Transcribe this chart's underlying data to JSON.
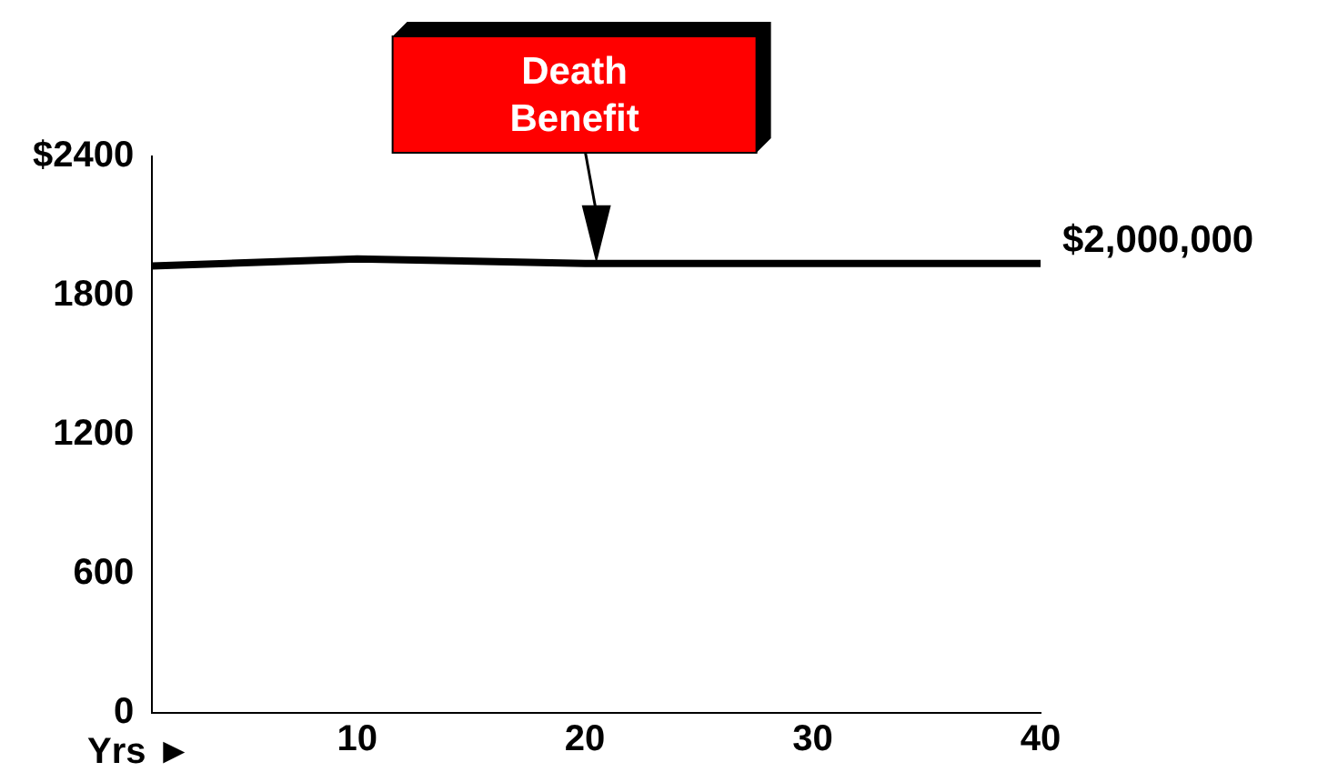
{
  "chart_data": {
    "type": "line",
    "xlabel": "Yrs ►",
    "x": [
      1,
      10,
      20,
      40
    ],
    "series": [
      {
        "color": "#000000",
        "values": [
          1927,
          1958,
          1938,
          1938
        ]
      }
    ],
    "xlim": [
      1,
      40
    ],
    "xticks": [
      10,
      20,
      30,
      40
    ],
    "ylim": [
      0,
      2400
    ],
    "yticks": [
      0,
      600,
      1200,
      1800,
      {
        "value": 2400,
        "label": "$2400"
      }
    ],
    "grid": false,
    "legend": false,
    "marker": "none",
    "line_style": "solid",
    "annotations": [
      "Death Benefit",
      {
        "text": "$2,000,000",
        "x": 40,
        "y": 1938
      }
    ]
  }
}
